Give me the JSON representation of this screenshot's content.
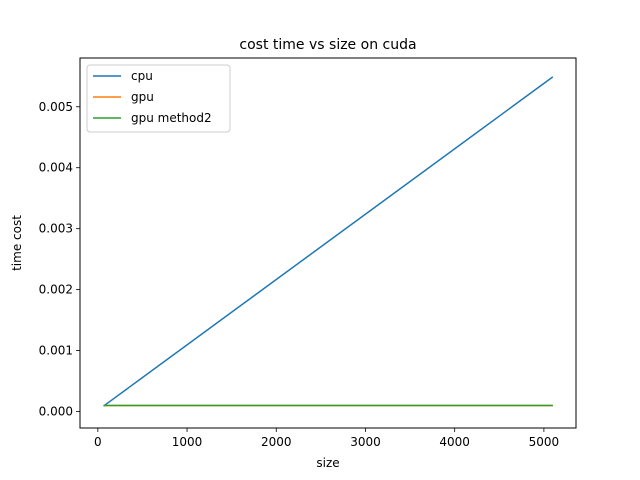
{
  "chart_data": {
    "type": "line",
    "title": "cost time vs size on cuda",
    "xlabel": "size",
    "ylabel": "time cost",
    "xlim": [
      -200,
      5360
    ],
    "ylim": [
      -0.00027,
      0.0058
    ],
    "xticks": [
      0,
      1000,
      2000,
      3000,
      4000,
      5000
    ],
    "xtick_labels": [
      "0",
      "1000",
      "2000",
      "3000",
      "4000",
      "5000"
    ],
    "yticks": [
      0.0,
      0.001,
      0.002,
      0.003,
      0.004,
      0.005
    ],
    "ytick_labels": [
      "0.000",
      "0.001",
      "0.002",
      "0.003",
      "0.004",
      "0.005"
    ],
    "grid": false,
    "legend_position": "upper-left",
    "series": [
      {
        "name": "cpu",
        "color": "#1f77b4",
        "x": [
          64,
          5100
        ],
        "y": [
          9e-05,
          0.00549
        ]
      },
      {
        "name": "gpu",
        "color": "#ff7f0e",
        "x": [
          64,
          5100
        ],
        "y": [
          0.0001,
          0.0001
        ]
      },
      {
        "name": "gpu method2",
        "color": "#2ca02c",
        "x": [
          64,
          5100
        ],
        "y": [
          0.0001,
          0.0001
        ]
      }
    ]
  }
}
